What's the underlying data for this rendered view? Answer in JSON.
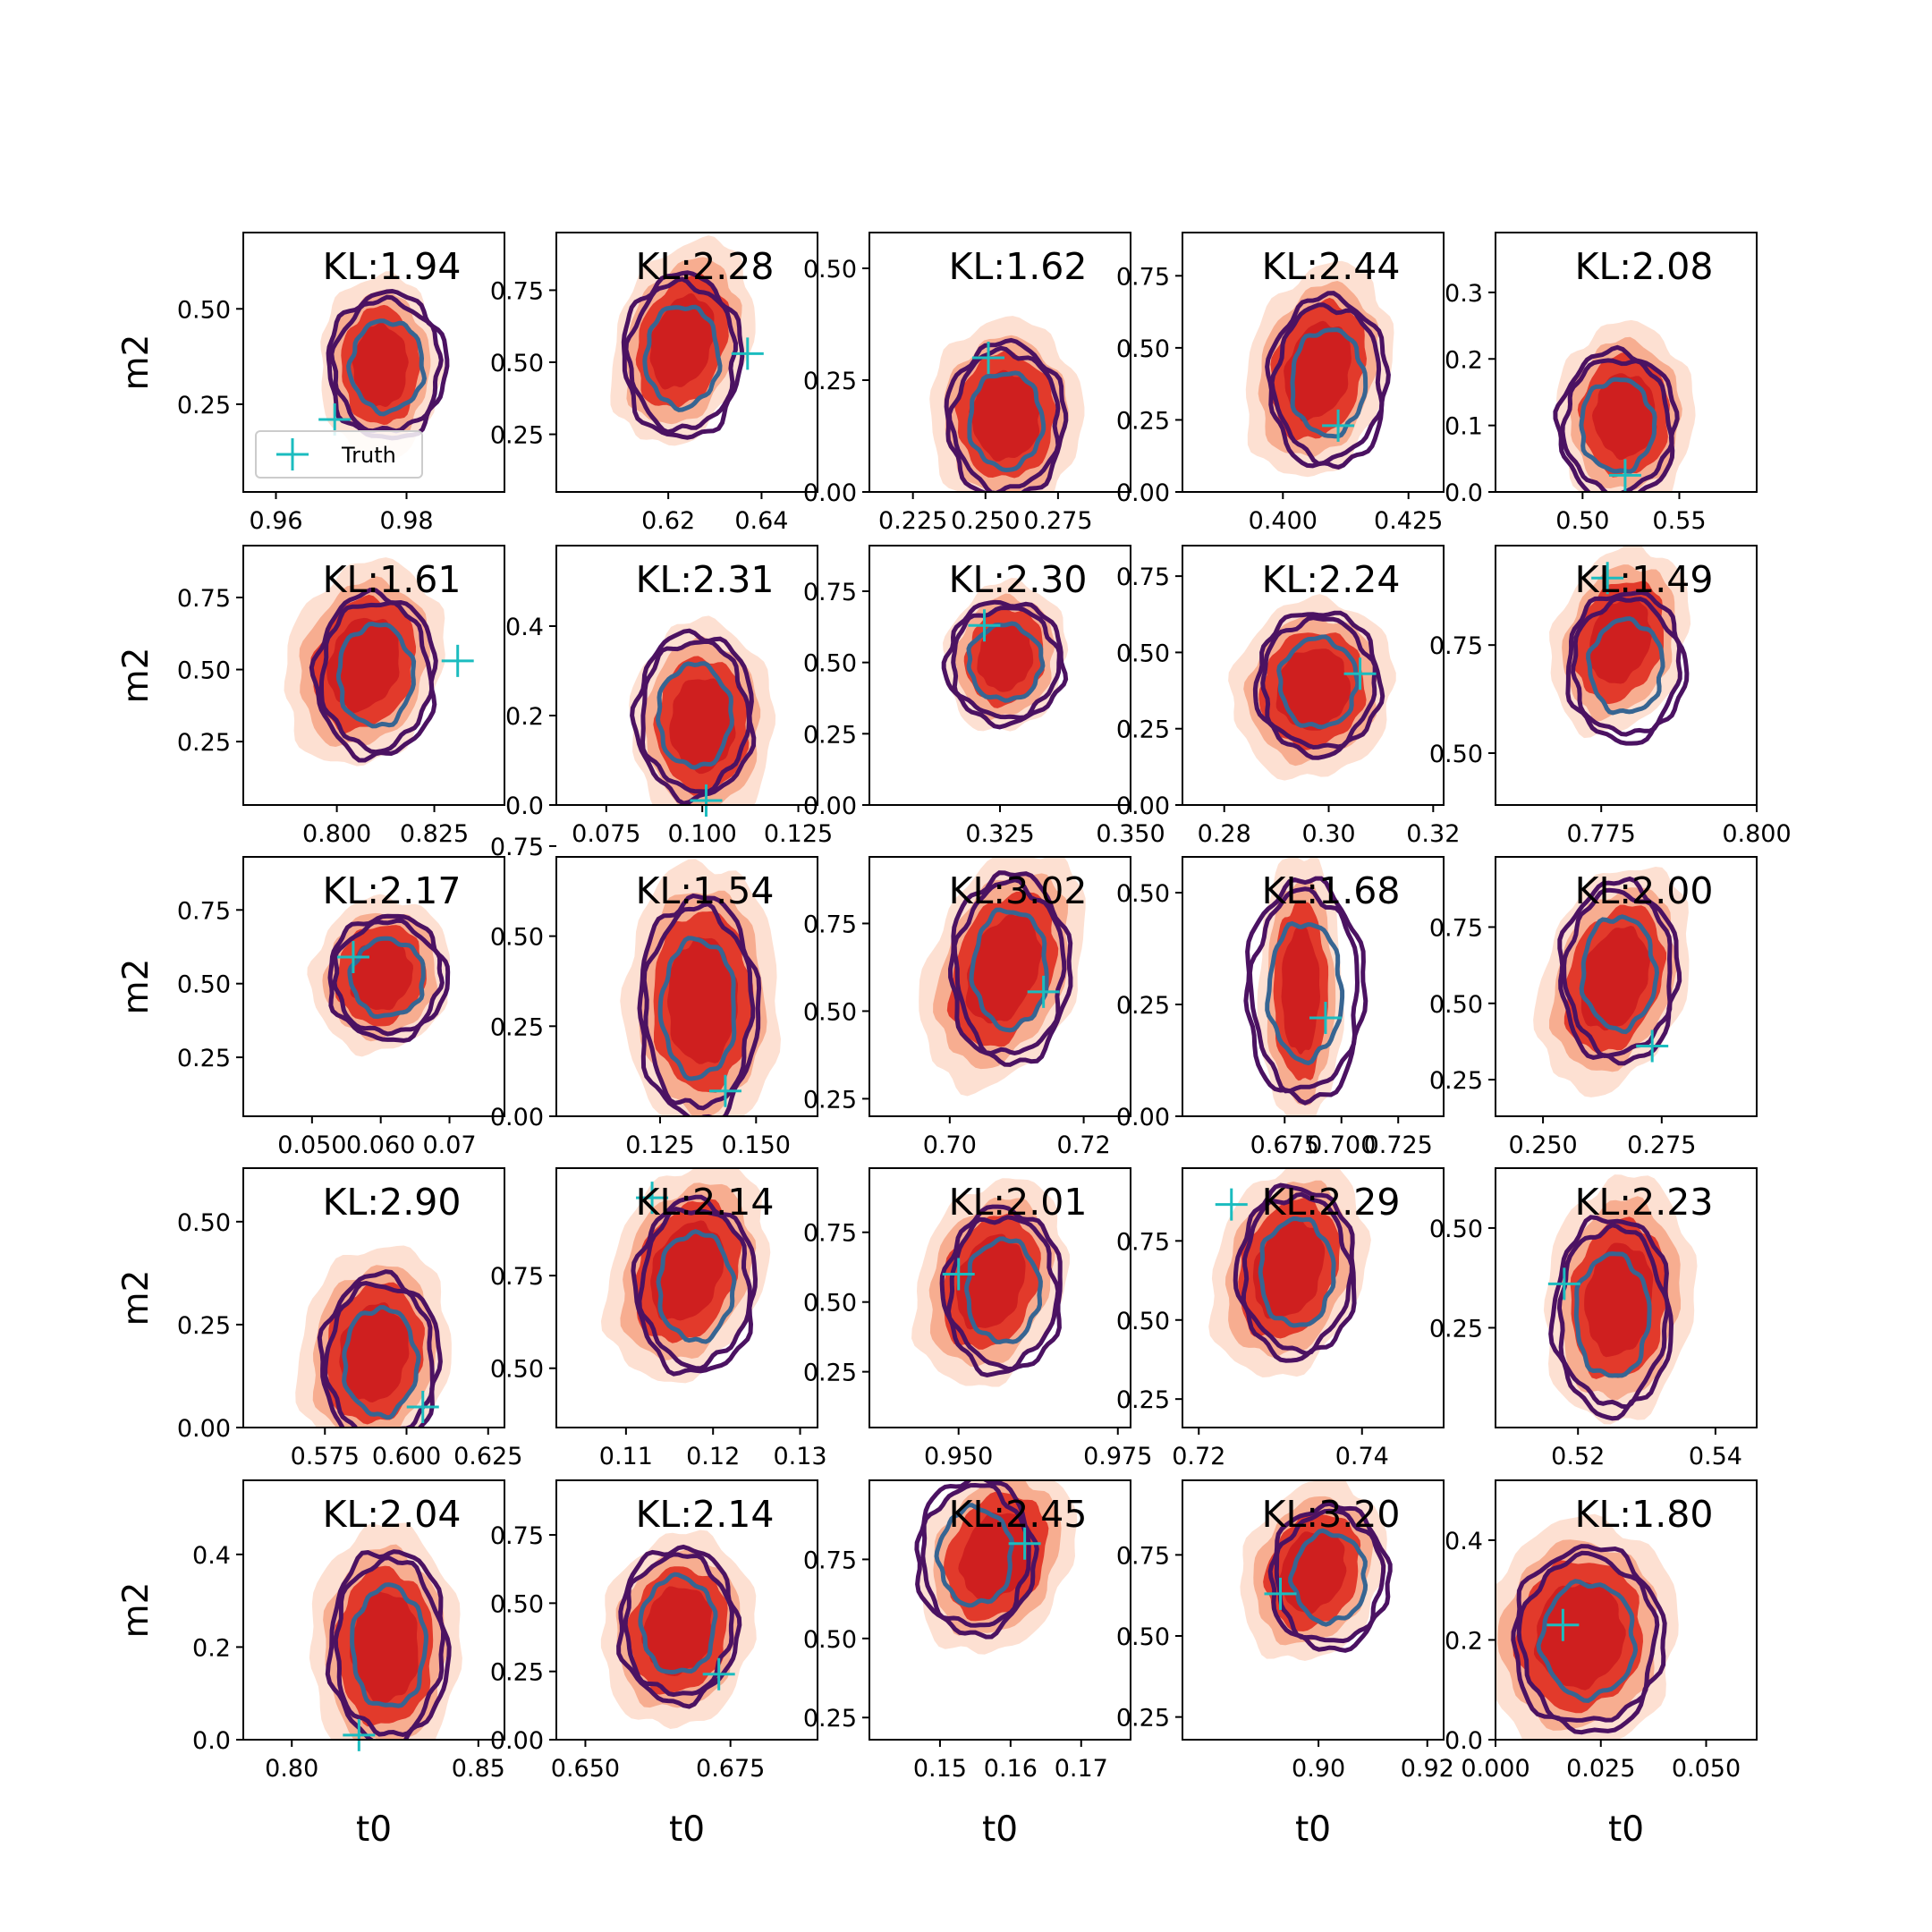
{
  "figure": {
    "legend_label": "Truth",
    "xlabel": "t0",
    "ylabel": "m2",
    "colors": {
      "fill_outer": "#fde0d2",
      "fill_mid": "#f7ad90",
      "fill_inner": "#e23a2b",
      "fill_core": "#cf1f1f",
      "contour_outer": "#4b1262",
      "contour_inner": "#376592",
      "truth": "#1bbcbf"
    }
  },
  "chart_data": [
    {
      "type": "contour",
      "kl_label": "KL:1.94",
      "xlabel": "",
      "ylabel": "m2",
      "xlim": [
        0.955,
        0.995
      ],
      "ylim": [
        0.02,
        0.7
      ],
      "xticks": [
        "0.96",
        "0.98"
      ],
      "yticks": [
        "0.25",
        "0.50"
      ],
      "truth": [
        0.969,
        0.21
      ],
      "center": [
        0.976,
        0.35
      ],
      "model_center": [
        0.977,
        0.35
      ],
      "rx": 0.006,
      "ry": 0.155,
      "skew": 0.0,
      "legend": true
    },
    {
      "type": "contour",
      "kl_label": "KL:2.28",
      "xlabel": "",
      "ylabel": "",
      "xlim": [
        0.596,
        0.652
      ],
      "ylim": [
        0.05,
        0.95
      ],
      "xticks": [
        "0.62",
        "0.64"
      ],
      "yticks": [
        "0.25",
        "0.50",
        "0.75"
      ],
      "truth": [
        0.637,
        0.53
      ],
      "center": [
        0.623,
        0.57
      ],
      "model_center": [
        0.623,
        0.52
      ],
      "rx": 0.0095,
      "ry": 0.23,
      "skew": -0.6
    },
    {
      "type": "contour",
      "kl_label": "KL:1.62",
      "xlabel": "",
      "ylabel": "",
      "xlim": [
        0.21,
        0.3
      ],
      "ylim": [
        0.0,
        0.58
      ],
      "xticks": [
        "0.225",
        "0.250",
        "0.275"
      ],
      "yticks": [
        "0.00",
        "0.25",
        "0.50"
      ],
      "truth": [
        0.251,
        0.3
      ],
      "center": [
        0.257,
        0.17
      ],
      "model_center": [
        0.257,
        0.16
      ],
      "rx": 0.017,
      "ry": 0.14,
      "skew": 0.0
    },
    {
      "type": "contour",
      "kl_label": "KL:2.44",
      "xlabel": "",
      "ylabel": "",
      "xlim": [
        0.38,
        0.432
      ],
      "ylim": [
        0.0,
        0.9
      ],
      "xticks": [
        "0.400",
        "0.425"
      ],
      "yticks": [
        "0.00",
        "0.25",
        "0.50",
        "0.75"
      ],
      "truth": [
        0.411,
        0.23
      ],
      "center": [
        0.407,
        0.42
      ],
      "model_center": [
        0.409,
        0.38
      ],
      "rx": 0.0092,
      "ry": 0.24,
      "skew": -0.5
    },
    {
      "type": "contour",
      "kl_label": "KL:2.08",
      "xlabel": "",
      "ylabel": "",
      "xlim": [
        0.455,
        0.59
      ],
      "ylim": [
        0.0,
        0.39
      ],
      "xticks": [
        "0.50",
        "0.55"
      ],
      "yticks": [
        "0.0",
        "0.1",
        "0.2",
        "0.3"
      ],
      "truth": [
        0.522,
        0.025
      ],
      "center": [
        0.522,
        0.115
      ],
      "model_center": [
        0.518,
        0.1
      ],
      "rx": 0.023,
      "ry": 0.09,
      "skew": 0.0
    },
    {
      "type": "contour",
      "kl_label": "KL:1.61",
      "xlabel": "",
      "ylabel": "m2",
      "xlim": [
        0.776,
        0.843
      ],
      "ylim": [
        0.03,
        0.93
      ],
      "xticks": [
        "0.800",
        "0.825"
      ],
      "yticks": [
        "0.25",
        "0.50",
        "0.75"
      ],
      "truth": [
        0.831,
        0.53
      ],
      "center": [
        0.807,
        0.52
      ],
      "model_center": [
        0.81,
        0.48
      ],
      "rx": 0.013,
      "ry": 0.23,
      "skew": -0.5
    },
    {
      "type": "contour",
      "kl_label": "KL:2.31",
      "xlabel": "",
      "ylabel": "",
      "xlim": [
        0.062,
        0.13
      ],
      "ylim": [
        0.0,
        0.58
      ],
      "xticks": [
        "0.075",
        "0.100",
        "0.125"
      ],
      "yticks": [
        "0.0",
        "0.2",
        "0.4"
      ],
      "truth": [
        0.101,
        0.01
      ],
      "center": [
        0.1,
        0.18
      ],
      "model_center": [
        0.098,
        0.2
      ],
      "rx": 0.012,
      "ry": 0.15,
      "skew": 0.0
    },
    {
      "type": "contour",
      "kl_label": "KL:2.30",
      "xlabel": "",
      "ylabel": "",
      "xlim": [
        0.3,
        0.35
      ],
      "ylim": [
        0.0,
        0.91
      ],
      "xticks": [
        "0.325",
        "0.350"
      ],
      "yticks": [
        "0.00",
        "0.25",
        "0.50",
        "0.75"
      ],
      "truth": [
        0.322,
        0.63
      ],
      "center": [
        0.326,
        0.52
      ],
      "model_center": [
        0.326,
        0.5
      ],
      "rx": 0.0075,
      "ry": 0.17,
      "skew": -0.3
    },
    {
      "type": "contour",
      "kl_label": "KL:2.24",
      "xlabel": "",
      "ylabel": "",
      "xlim": [
        0.272,
        0.322
      ],
      "ylim": [
        0.0,
        0.85
      ],
      "xticks": [
        "0.28",
        "0.30",
        "0.32"
      ],
      "yticks": [
        "0.00",
        "0.25",
        "0.50",
        "0.75"
      ],
      "truth": [
        0.306,
        0.43
      ],
      "center": [
        0.297,
        0.38
      ],
      "model_center": [
        0.298,
        0.4
      ],
      "rx": 0.01,
      "ry": 0.19,
      "skew": -0.3
    },
    {
      "type": "contour",
      "kl_label": "KL:1.49",
      "xlabel": "",
      "ylabel": "",
      "xlim": [
        0.758,
        0.8
      ],
      "ylim": [
        0.38,
        0.98
      ],
      "xticks": [
        "0.775",
        "0.800"
      ],
      "yticks": [
        "0.50",
        "0.75"
      ],
      "truth": [
        0.776,
        0.905
      ],
      "center": [
        0.778,
        0.76
      ],
      "model_center": [
        0.779,
        0.7
      ],
      "rx": 0.007,
      "ry": 0.14,
      "skew": -0.6
    },
    {
      "type": "contour",
      "kl_label": "KL:2.17",
      "xlabel": "",
      "ylabel": "m2",
      "xlim": [
        0.04,
        0.078
      ],
      "ylim": [
        0.05,
        0.93
      ],
      "xticks": [
        "0.050",
        "0.060",
        "0.07"
      ],
      "yticks": [
        "0.25",
        "0.50",
        "0.75"
      ],
      "truth": [
        0.056,
        0.59
      ],
      "center": [
        0.06,
        0.53
      ],
      "model_center": [
        0.061,
        0.52
      ],
      "rx": 0.0065,
      "ry": 0.17,
      "skew": -0.3
    },
    {
      "type": "contour",
      "kl_label": "KL:1.54",
      "xlabel": "",
      "ylabel": "",
      "xlim": [
        0.098,
        0.166
      ],
      "ylim": [
        0.0,
        0.72
      ],
      "xticks": [
        "0.125",
        "0.150"
      ],
      "yticks": [
        "0.00",
        "0.25",
        "0.50",
        "0.75"
      ],
      "truth": [
        0.142,
        0.07
      ],
      "center": [
        0.136,
        0.32
      ],
      "model_center": [
        0.135,
        0.3
      ],
      "rx": 0.013,
      "ry": 0.25,
      "skew": 0.0
    },
    {
      "type": "contour",
      "kl_label": "KL:3.02",
      "xlabel": "",
      "ylabel": "",
      "xlim": [
        0.688,
        0.727
      ],
      "ylim": [
        0.2,
        0.94
      ],
      "xticks": [
        "0.70",
        "0.72"
      ],
      "yticks": [
        "0.25",
        "0.50",
        "0.75"
      ],
      "truth": [
        0.714,
        0.555
      ],
      "center": [
        0.708,
        0.62
      ],
      "model_center": [
        0.709,
        0.62
      ],
      "rx": 0.0075,
      "ry": 0.22,
      "skew": -0.7
    },
    {
      "type": "contour",
      "kl_label": "KL:1.68",
      "xlabel": "",
      "ylabel": "",
      "xlim": [
        0.63,
        0.745
      ],
      "ylim": [
        0.0,
        0.58
      ],
      "xticks": [
        "0.675",
        "0.700",
        "0.725"
      ],
      "yticks": [
        "0.00",
        "0.25",
        "0.50"
      ],
      "truth": [
        0.693,
        0.22
      ],
      "center": [
        0.682,
        0.28
      ],
      "model_center": [
        0.684,
        0.28
      ],
      "rx": 0.012,
      "ry": 0.2,
      "skew": 0.0
    },
    {
      "type": "contour",
      "kl_label": "KL:2.00",
      "xlabel": "",
      "ylabel": "",
      "xlim": [
        0.24,
        0.295
      ],
      "ylim": [
        0.13,
        0.98
      ],
      "xticks": [
        "0.250",
        "0.275"
      ],
      "yticks": [
        "0.25",
        "0.50",
        "0.75"
      ],
      "truth": [
        0.273,
        0.36
      ],
      "center": [
        0.265,
        0.58
      ],
      "model_center": [
        0.266,
        0.6
      ],
      "rx": 0.01,
      "ry": 0.24,
      "skew": -0.6
    },
    {
      "type": "contour",
      "kl_label": "KL:2.90",
      "xlabel": "",
      "ylabel": "m2",
      "xlim": [
        0.55,
        0.63
      ],
      "ylim": [
        0.0,
        0.63
      ],
      "xticks": [
        "0.575",
        "0.600",
        "0.625"
      ],
      "yticks": [
        "0.00",
        "0.25",
        "0.50"
      ],
      "truth": [
        0.605,
        0.05
      ],
      "center": [
        0.59,
        0.18
      ],
      "model_center": [
        0.592,
        0.16
      ],
      "rx": 0.015,
      "ry": 0.17,
      "skew": -0.3
    },
    {
      "type": "contour",
      "kl_label": "KL:2.14",
      "xlabel": "",
      "ylabel": "",
      "xlim": [
        0.102,
        0.132
      ],
      "ylim": [
        0.34,
        1.04
      ],
      "xticks": [
        "0.11",
        "0.12",
        "0.13"
      ],
      "yticks": [
        "0.50",
        "0.75"
      ],
      "truth": [
        0.113,
        0.96
      ],
      "center": [
        0.117,
        0.76
      ],
      "model_center": [
        0.118,
        0.72
      ],
      "rx": 0.0058,
      "ry": 0.19,
      "skew": -0.7
    },
    {
      "type": "contour",
      "kl_label": "KL:2.01",
      "xlabel": "",
      "ylabel": "",
      "xlim": [
        0.936,
        0.977
      ],
      "ylim": [
        0.05,
        0.98
      ],
      "xticks": [
        "0.950",
        "0.975"
      ],
      "yticks": [
        "0.25",
        "0.50",
        "0.75"
      ],
      "truth": [
        0.95,
        0.6
      ],
      "center": [
        0.955,
        0.57
      ],
      "model_center": [
        0.957,
        0.54
      ],
      "rx": 0.0075,
      "ry": 0.24,
      "skew": -0.6
    },
    {
      "type": "contour",
      "kl_label": "KL:2.29",
      "xlabel": "",
      "ylabel": "",
      "xlim": [
        0.718,
        0.75
      ],
      "ylim": [
        0.16,
        0.98
      ],
      "xticks": [
        "0.72",
        "0.74"
      ],
      "yticks": [
        "0.25",
        "0.50",
        "0.75"
      ],
      "truth": [
        0.724,
        0.865
      ],
      "center": [
        0.731,
        0.66
      ],
      "model_center": [
        0.732,
        0.65
      ],
      "rx": 0.006,
      "ry": 0.22,
      "skew": -0.6
    },
    {
      "type": "contour",
      "kl_label": "KL:2.23",
      "xlabel": "",
      "ylabel": "",
      "xlim": [
        0.508,
        0.546
      ],
      "ylim": [
        0.0,
        0.65
      ],
      "xticks": [
        "0.52",
        "0.54"
      ],
      "yticks": [
        "0.25",
        "0.50"
      ],
      "truth": [
        0.518,
        0.36
      ],
      "center": [
        0.526,
        0.32
      ],
      "model_center": [
        0.525,
        0.28
      ],
      "rx": 0.007,
      "ry": 0.2,
      "skew": -0.2
    },
    {
      "type": "contour",
      "kl_label": "KL:2.04",
      "xlabel": "",
      "ylabel": "m2",
      "xlim": [
        0.787,
        0.857
      ],
      "ylim": [
        0.0,
        0.56
      ],
      "xticks": [
        "0.80",
        "0.85"
      ],
      "yticks": [
        "0.0",
        "0.2",
        "0.4"
      ],
      "truth": [
        0.818,
        0.01
      ],
      "center": [
        0.825,
        0.2
      ],
      "model_center": [
        0.826,
        0.2
      ],
      "rx": 0.013,
      "ry": 0.17,
      "skew": 0.0
    },
    {
      "type": "contour",
      "kl_label": "KL:2.14",
      "xlabel": "",
      "ylabel": "",
      "xlim": [
        0.645,
        0.69
      ],
      "ylim": [
        0.0,
        0.95
      ],
      "xticks": [
        "0.650",
        "0.675"
      ],
      "yticks": [
        "0.00",
        "0.25",
        "0.50",
        "0.75"
      ],
      "truth": [
        0.673,
        0.24
      ],
      "center": [
        0.666,
        0.4
      ],
      "model_center": [
        0.666,
        0.42
      ],
      "rx": 0.0085,
      "ry": 0.23,
      "skew": -0.3
    },
    {
      "type": "contour",
      "kl_label": "KL:2.45",
      "xlabel": "",
      "ylabel": "",
      "xlim": [
        0.14,
        0.177
      ],
      "ylim": [
        0.18,
        1.0
      ],
      "xticks": [
        "0.15",
        "0.16",
        "0.17"
      ],
      "yticks": [
        "0.25",
        "0.50",
        "0.75"
      ],
      "truth": [
        0.162,
        0.8
      ],
      "center": [
        0.158,
        0.76
      ],
      "model_center": [
        0.155,
        0.76
      ],
      "rx": 0.007,
      "ry": 0.2,
      "skew": -0.7
    },
    {
      "type": "contour",
      "kl_label": "KL:3.20",
      "xlabel": "",
      "ylabel": "",
      "xlim": [
        0.875,
        0.923
      ],
      "ylim": [
        0.18,
        0.98
      ],
      "xticks": [
        "0.90",
        "0.92"
      ],
      "yticks": [
        "0.25",
        "0.50",
        "0.75"
      ],
      "truth": [
        0.893,
        0.63
      ],
      "center": [
        0.899,
        0.7
      ],
      "model_center": [
        0.902,
        0.68
      ],
      "rx": 0.0085,
      "ry": 0.18,
      "skew": -0.6
    },
    {
      "type": "contour",
      "kl_label": "KL:1.80",
      "xlabel": "",
      "ylabel": "",
      "xlim": [
        0.0,
        0.062
      ],
      "ylim": [
        0.0,
        0.52
      ],
      "xticks": [
        "0.000",
        "0.025",
        "0.050"
      ],
      "yticks": [
        "0.0",
        "0.2",
        "0.4"
      ],
      "truth": [
        0.016,
        0.23
      ],
      "center": [
        0.02,
        0.21
      ],
      "model_center": [
        0.022,
        0.2
      ],
      "rx": 0.015,
      "ry": 0.15,
      "skew": -0.2
    }
  ]
}
